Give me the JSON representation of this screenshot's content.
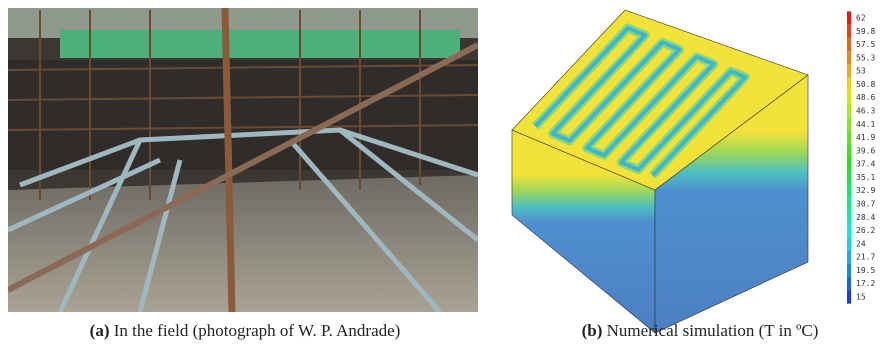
{
  "figure": {
    "panels": [
      {
        "caption_label": "(a)",
        "caption_text": "In the field (photograph of W. P. Andrade)"
      },
      {
        "caption_label": "(b)",
        "caption_text": "Numerical simulation (T in ºC)"
      }
    ],
    "colorbar": {
      "labels": [
        "62",
        "59.8",
        "57.5",
        "55.3",
        "53",
        "50.8",
        "48.6",
        "46.3",
        "44.1",
        "41.9",
        "39.6",
        "37.4",
        "35.1",
        "32.9",
        "30.7",
        "28.4",
        "26.2",
        "24",
        "21.7",
        "19.5",
        "17.2",
        "15"
      ]
    }
  }
}
